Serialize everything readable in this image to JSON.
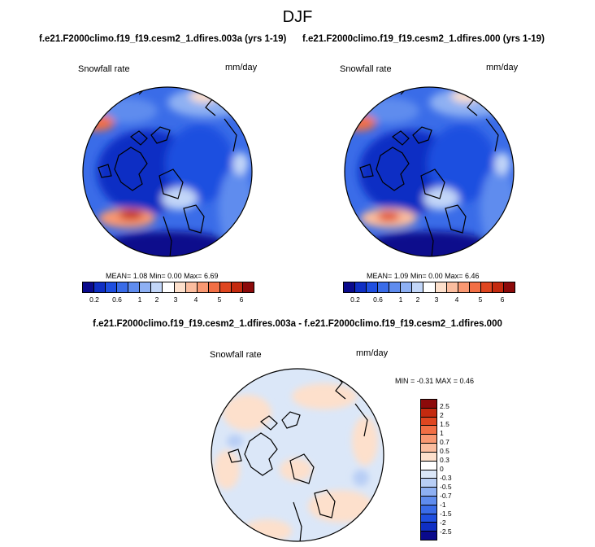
{
  "title": "DJF",
  "panels": [
    {
      "case_label": "f.e21.F2000climo.f19_f19.cesm2_1.dfires.003a (yrs 1-19)",
      "variable_label": "Snowfall rate",
      "units_label": "mm/day",
      "stats": {
        "mean": "1.08",
        "min": "0.00",
        "max": "6.69"
      }
    },
    {
      "case_label": "f.e21.F2000climo.f19_f19.cesm2_1.dfires.000 (yrs 1-19)",
      "variable_label": "Snowfall rate",
      "units_label": "mm/day",
      "stats": {
        "mean": "1.09",
        "min": "0.00",
        "max": "6.46"
      }
    }
  ],
  "stat_labels": {
    "mean": "MEAN=",
    "min": "Min=",
    "max": "Max="
  },
  "colorbar": {
    "ticks": [
      "0.2",
      "0.6",
      "1",
      "2",
      "3",
      "4",
      "5",
      "6"
    ],
    "colors": [
      "#0a0a8c",
      "#0f2fc4",
      "#1f4fe0",
      "#3a6ce8",
      "#5f8cee",
      "#8eb0f3",
      "#c2d6f8",
      "#ffffff",
      "#fde0cc",
      "#fbbd9f",
      "#f99872",
      "#f26f45",
      "#df4620",
      "#c42a0f",
      "#8c0a0a"
    ]
  },
  "difference": {
    "title": "f.e21.F2000climo.f19_f19.cesm2_1.dfires.003a - f.e21.F2000climo.f19_f19.cesm2_1.dfires.000",
    "variable_label": "Snowfall rate",
    "units_label": "mm/day",
    "stats_text": "MIN = -0.31 MAX =   0.46",
    "colorbar_ticks": [
      "2.5",
      "2",
      "1.5",
      "1",
      "0.7",
      "0.5",
      "0.3",
      "0",
      "-0.3",
      "-0.5",
      "-0.7",
      "-1",
      "-1.5",
      "-2",
      "-2.5"
    ],
    "colorbar_colors": [
      "#8c0a0a",
      "#c42a0f",
      "#df4620",
      "#f26f45",
      "#f99872",
      "#fbbd9f",
      "#fde0cc",
      "#ffffff",
      "#dbe7f8",
      "#b8cef5",
      "#8eb0f3",
      "#5f8cee",
      "#3a6ce8",
      "#1f4fe0",
      "#0f2fc4",
      "#0a0a8c"
    ]
  }
}
